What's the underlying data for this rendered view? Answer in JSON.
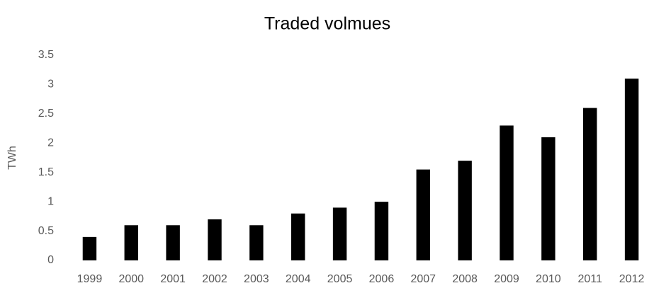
{
  "chart_data": {
    "type": "bar",
    "title": "Traded volmues",
    "y_label": "TWh",
    "categories": [
      "1999",
      "2000",
      "2001",
      "2002",
      "2003",
      "2004",
      "2005",
      "2006",
      "2007",
      "2008",
      "2009",
      "2010",
      "2011",
      "2012"
    ],
    "values": [
      0.4,
      0.6,
      0.6,
      0.7,
      0.6,
      0.8,
      0.9,
      1.0,
      1.55,
      1.7,
      2.3,
      2.1,
      2.6,
      3.1
    ],
    "color": "#000000",
    "ylim": [
      0,
      3.5
    ],
    "yticks": [
      0,
      0.5,
      1,
      1.5,
      2,
      2.5,
      3,
      3.5
    ],
    "grid": false
  }
}
